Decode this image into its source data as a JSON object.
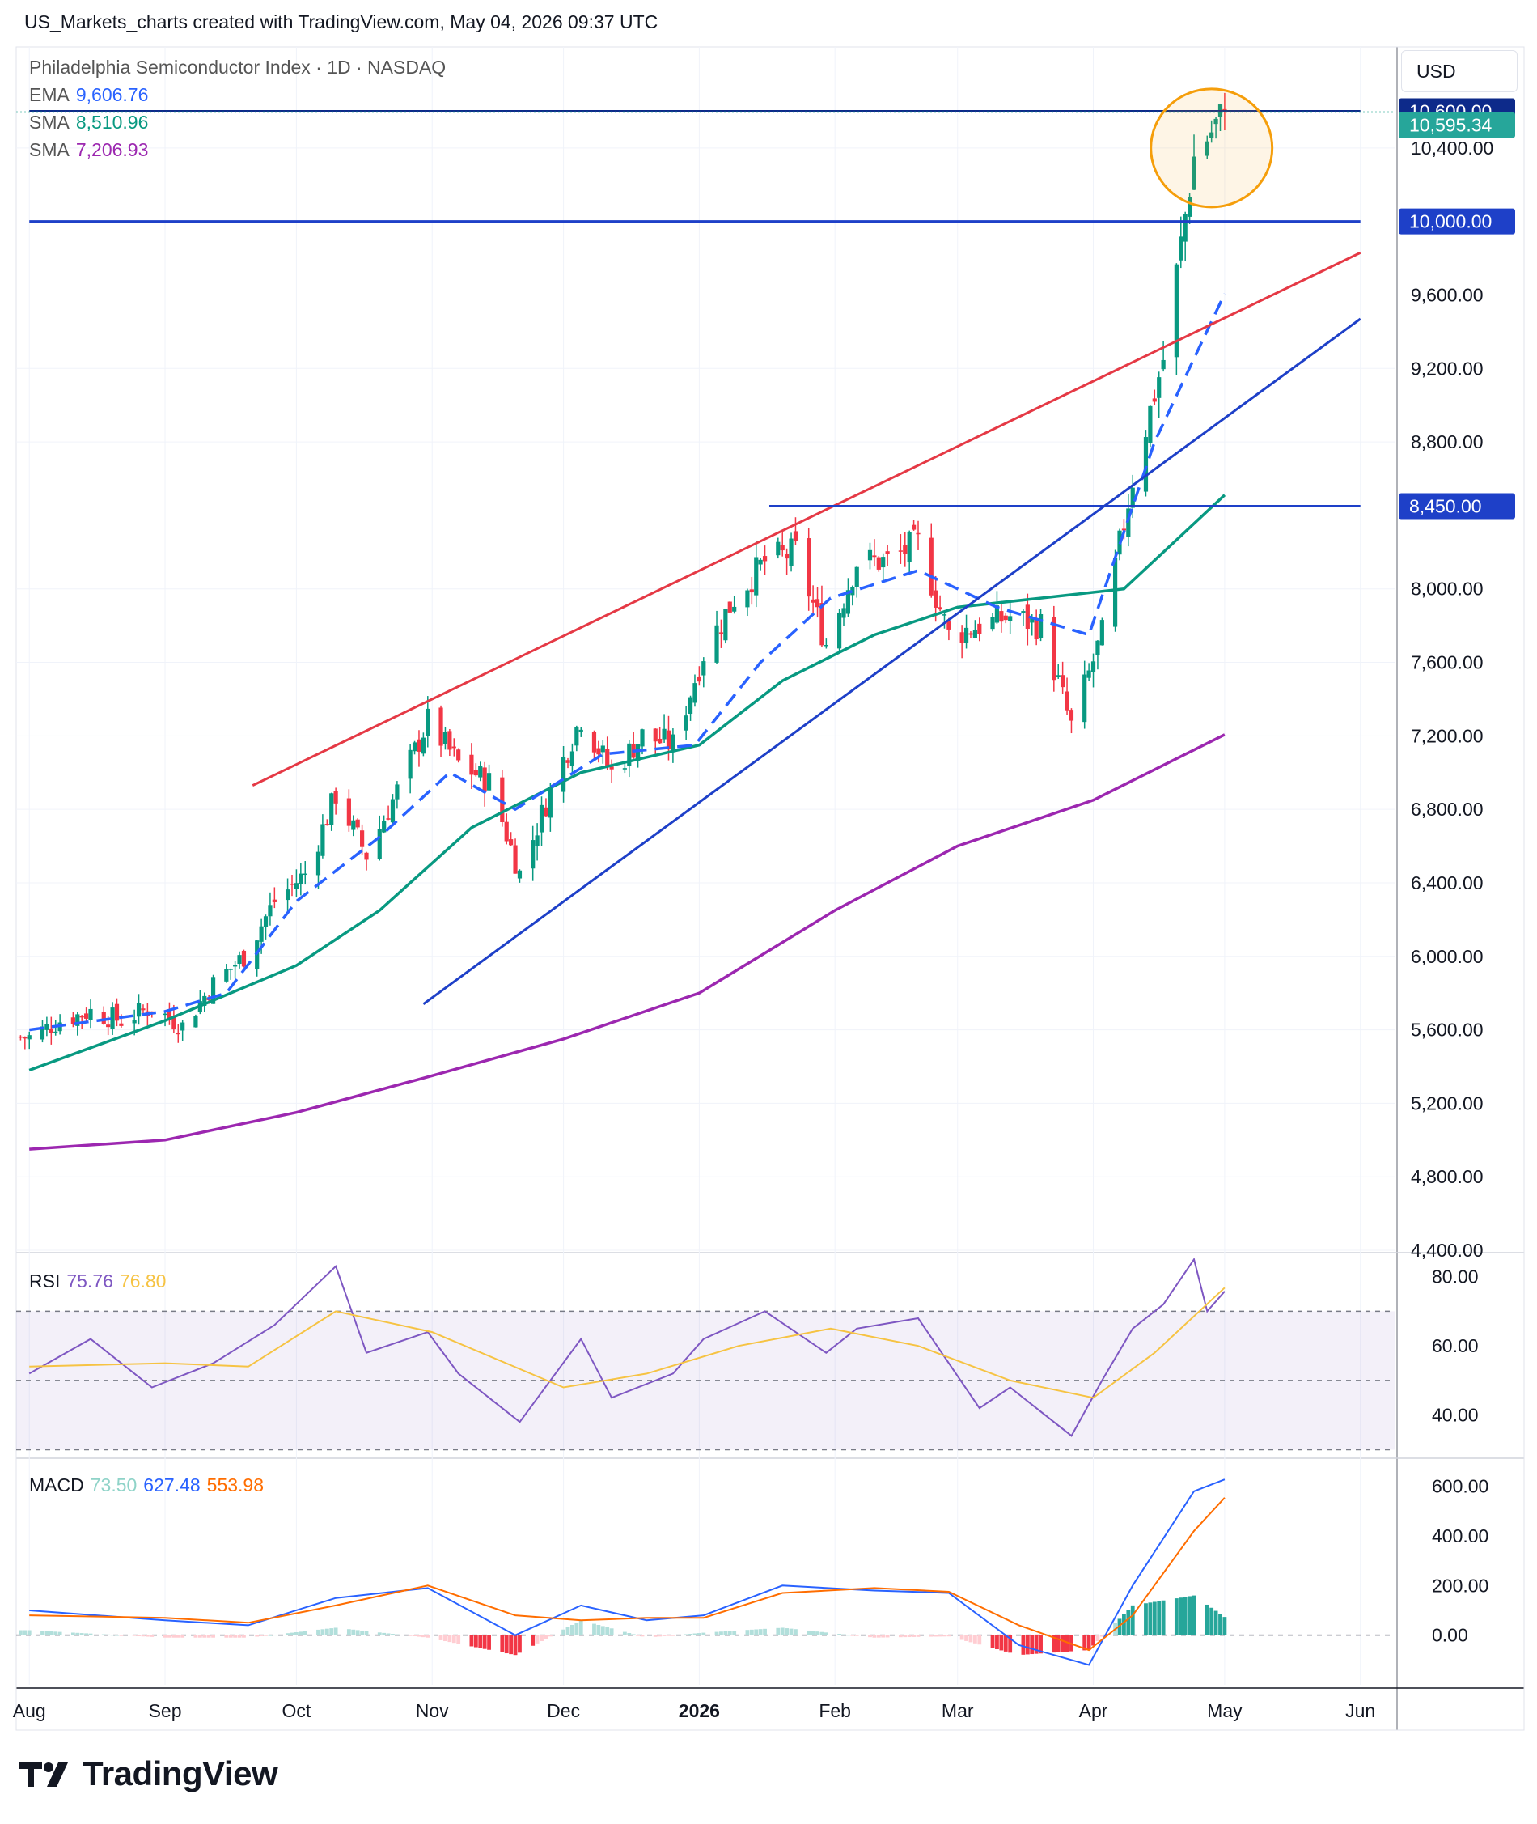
{
  "header": {
    "credit": "US_Markets_charts created with TradingView.com, May 04, 2026 09:37 UTC"
  },
  "legend": {
    "symbol": "Philadelphia Semiconductor Index · 1D · NASDAQ",
    "ema_label": "EMA",
    "ema_value": "9,606.76",
    "ema_color": "#2962ff",
    "sma1_label": "SMA",
    "sma1_value": "8,510.96",
    "sma1_color": "#089981",
    "sma2_label": "SMA",
    "sma2_value": "7,206.93",
    "sma2_color": "#9c27b0"
  },
  "currency": "USD",
  "rsi_legend": {
    "label": "RSI",
    "value": "75.76",
    "ma_value": "76.80"
  },
  "macd_legend": {
    "label": "MACD",
    "hist": "73.50",
    "macd": "627.48",
    "signal": "553.98"
  },
  "price_tags": [
    {
      "text": "10,600.00",
      "price": 10600,
      "bg": "#0d2a8a"
    },
    {
      "text": "10,595.34",
      "price": 10595.34,
      "bg": "#26a69a"
    },
    {
      "text": "10,000.00",
      "price": 10000,
      "bg": "#1e40c8"
    },
    {
      "text": "8,450.00",
      "price": 8450,
      "bg": "#1e40c8"
    }
  ],
  "branding": "TradingView",
  "chart_data": [
    {
      "type": "candlestick",
      "title": "Philadelphia Semiconductor Index · 1D · NASDAQ",
      "y_axis_ticks": [
        "10,400.00",
        "9,600.00",
        "9,200.00",
        "8,800.00",
        "8,000.00",
        "7,600.00",
        "7,200.00",
        "6,800.00",
        "6,400.00",
        "6,000.00",
        "5,600.00",
        "5,200.00",
        "4,800.00",
        "4,400.00"
      ],
      "ylim": [
        4400,
        10950
      ],
      "x_axis_ticks": [
        "Aug",
        "Sep",
        "Oct",
        "Nov",
        "Dec",
        "2026",
        "Feb",
        "Mar",
        "Apr",
        "May",
        "Jun"
      ],
      "close_path": [
        [
          "2025-08-01",
          5560
        ],
        [
          "2025-08-08",
          5650
        ],
        [
          "2025-08-15",
          5700
        ],
        [
          "2025-08-22",
          5650
        ],
        [
          "2025-08-29",
          5720
        ],
        [
          "2025-09-05",
          5620
        ],
        [
          "2025-09-12",
          5850
        ],
        [
          "2025-09-19",
          6000
        ],
        [
          "2025-09-26",
          6300
        ],
        [
          "2025-10-03",
          6450
        ],
        [
          "2025-10-10",
          6880
        ],
        [
          "2025-10-17",
          6550
        ],
        [
          "2025-10-24",
          6900
        ],
        [
          "2025-10-31",
          7280
        ],
        [
          "2025-11-07",
          7050
        ],
        [
          "2025-11-14",
          6950
        ],
        [
          "2025-11-21",
          6450
        ],
        [
          "2025-11-28",
          6900
        ],
        [
          "2025-12-05",
          7300
        ],
        [
          "2025-12-12",
          7000
        ],
        [
          "2025-12-19",
          7200
        ],
        [
          "2025-12-26",
          7150
        ],
        [
          "2026-01-02",
          7650
        ],
        [
          "2026-01-09",
          7950
        ],
        [
          "2026-01-16",
          8150
        ],
        [
          "2026-01-23",
          8200
        ],
        [
          "2026-01-30",
          7700
        ],
        [
          "2026-02-06",
          8150
        ],
        [
          "2026-02-13",
          8150
        ],
        [
          "2026-02-20",
          8250
        ],
        [
          "2026-02-27",
          7750
        ],
        [
          "2026-03-06",
          7800
        ],
        [
          "2026-03-13",
          7850
        ],
        [
          "2026-03-20",
          7800
        ],
        [
          "2026-03-27",
          7250
        ],
        [
          "2026-04-03",
          7750
        ],
        [
          "2026-04-10",
          8600
        ],
        [
          "2026-04-17",
          9250
        ],
        [
          "2026-04-24",
          10350
        ],
        [
          "2026-05-01",
          10595.34
        ]
      ],
      "ema": [
        [
          "2025-08-01",
          5600
        ],
        [
          "2025-09-01",
          5700
        ],
        [
          "2025-09-15",
          5800
        ],
        [
          "2025-10-01",
          6300
        ],
        [
          "2025-10-20",
          6650
        ],
        [
          "2025-11-05",
          7000
        ],
        [
          "2025-11-20",
          6800
        ],
        [
          "2025-12-10",
          7100
        ],
        [
          "2025-12-31",
          7150
        ],
        [
          "2026-01-15",
          7600
        ],
        [
          "2026-01-31",
          7950
        ],
        [
          "2026-02-20",
          8100
        ],
        [
          "2026-03-10",
          7900
        ],
        [
          "2026-03-31",
          7750
        ],
        [
          "2026-04-15",
          8800
        ],
        [
          "2026-05-01",
          9606.76
        ]
      ],
      "sma_50": [
        [
          "2025-08-01",
          5380
        ],
        [
          "2025-09-01",
          5650
        ],
        [
          "2025-10-01",
          5950
        ],
        [
          "2025-10-20",
          6250
        ],
        [
          "2025-11-10",
          6700
        ],
        [
          "2025-12-05",
          7000
        ],
        [
          "2026-01-01",
          7150
        ],
        [
          "2026-01-20",
          7500
        ],
        [
          "2026-02-10",
          7750
        ],
        [
          "2026-03-01",
          7900
        ],
        [
          "2026-03-20",
          7950
        ],
        [
          "2026-04-08",
          8000
        ],
        [
          "2026-05-01",
          8510.96
        ]
      ],
      "sma_200": [
        [
          "2025-08-01",
          4950
        ],
        [
          "2025-09-01",
          5000
        ],
        [
          "2025-10-01",
          5150
        ],
        [
          "2025-11-01",
          5350
        ],
        [
          "2025-12-01",
          5550
        ],
        [
          "2026-01-01",
          5800
        ],
        [
          "2026-02-01",
          6250
        ],
        [
          "2026-03-01",
          6600
        ],
        [
          "2026-04-01",
          6850
        ],
        [
          "2026-05-01",
          7206.93
        ]
      ],
      "trendlines": [
        {
          "color": "#e53945",
          "from": [
            "2025-09-21",
            6930
          ],
          "to": [
            "2026-06-01",
            9830
          ]
        },
        {
          "color": "#1e40c8",
          "from": [
            "2025-10-30",
            5740
          ],
          "to": [
            "2026-06-01",
            9470
          ]
        },
        {
          "color": "#1e40c8",
          "from": [
            "2026-01-17",
            8450
          ],
          "to": [
            "2026-06-01",
            8450
          ]
        },
        {
          "color": "#1e40c8",
          "from": [
            "2025-08-01",
            10000
          ],
          "to": [
            "2026-06-01",
            10000
          ]
        },
        {
          "color": "#0d2a8a",
          "from": [
            "2025-08-01",
            10600
          ],
          "to": [
            "2026-06-01",
            10600
          ]
        }
      ],
      "highlight": {
        "shape": "circle",
        "color": "#f59e0b",
        "center": [
          "2026-04-28",
          10400
        ]
      }
    },
    {
      "type": "line",
      "title": "RSI",
      "y_axis_ticks": [
        "80.00",
        "60.00",
        "40.00"
      ],
      "ylim": [
        28,
        86
      ],
      "bands": [
        30,
        50,
        70
      ],
      "series": [
        {
          "name": "RSI",
          "color": "#7e57c2",
          "values": [
            [
              "2025-08-01",
              52
            ],
            [
              "2025-08-15",
              62
            ],
            [
              "2025-08-29",
              48
            ],
            [
              "2025-09-12",
              55
            ],
            [
              "2025-09-26",
              66
            ],
            [
              "2025-10-10",
              83
            ],
            [
              "2025-10-17",
              58
            ],
            [
              "2025-10-31",
              64
            ],
            [
              "2025-11-07",
              52
            ],
            [
              "2025-11-21",
              38
            ],
            [
              "2025-12-05",
              62
            ],
            [
              "2025-12-12",
              45
            ],
            [
              "2025-12-26",
              52
            ],
            [
              "2026-01-02",
              62
            ],
            [
              "2026-01-16",
              70
            ],
            [
              "2026-01-30",
              58
            ],
            [
              "2026-02-06",
              65
            ],
            [
              "2026-02-20",
              68
            ],
            [
              "2026-03-06",
              42
            ],
            [
              "2026-03-13",
              48
            ],
            [
              "2026-03-27",
              34
            ],
            [
              "2026-04-03",
              50
            ],
            [
              "2026-04-10",
              65
            ],
            [
              "2026-04-17",
              72
            ],
            [
              "2026-04-24",
              85
            ],
            [
              "2026-04-27",
              70
            ],
            [
              "2026-05-01",
              75.76
            ]
          ]
        },
        {
          "name": "RSI MA",
          "color": "#f6c343",
          "values": [
            [
              "2025-08-01",
              54
            ],
            [
              "2025-09-01",
              55
            ],
            [
              "2025-09-20",
              54
            ],
            [
              "2025-10-10",
              70
            ],
            [
              "2025-11-01",
              64
            ],
            [
              "2025-12-01",
              48
            ],
            [
              "2025-12-20",
              52
            ],
            [
              "2026-01-10",
              60
            ],
            [
              "2026-01-31",
              65
            ],
            [
              "2026-02-20",
              60
            ],
            [
              "2026-03-13",
              50
            ],
            [
              "2026-04-01",
              45
            ],
            [
              "2026-04-15",
              58
            ],
            [
              "2026-05-01",
              76.8
            ]
          ]
        }
      ]
    },
    {
      "type": "line",
      "title": "MACD",
      "y_axis_ticks": [
        "600.00",
        "400.00",
        "200.00",
        "0.00"
      ],
      "ylim": [
        -200,
        700
      ],
      "series": [
        {
          "name": "MACD",
          "color": "#2962ff",
          "values": [
            [
              "2025-08-01",
              100
            ],
            [
              "2025-09-01",
              60
            ],
            [
              "2025-09-20",
              40
            ],
            [
              "2025-10-10",
              150
            ],
            [
              "2025-10-31",
              190
            ],
            [
              "2025-11-20",
              0
            ],
            [
              "2025-12-05",
              120
            ],
            [
              "2025-12-20",
              60
            ],
            [
              "2026-01-02",
              80
            ],
            [
              "2026-01-20",
              200
            ],
            [
              "2026-02-10",
              180
            ],
            [
              "2026-02-27",
              170
            ],
            [
              "2026-03-15",
              -40
            ],
            [
              "2026-03-31",
              -120
            ],
            [
              "2026-04-10",
              200
            ],
            [
              "2026-04-24",
              580
            ],
            [
              "2026-05-01",
              627.48
            ]
          ]
        },
        {
          "name": "Signal",
          "color": "#ff6d00",
          "values": [
            [
              "2025-08-01",
              80
            ],
            [
              "2025-09-01",
              70
            ],
            [
              "2025-09-20",
              50
            ],
            [
              "2025-10-10",
              120
            ],
            [
              "2025-10-31",
              200
            ],
            [
              "2025-11-20",
              80
            ],
            [
              "2025-12-05",
              60
            ],
            [
              "2025-12-20",
              70
            ],
            [
              "2026-01-02",
              70
            ],
            [
              "2026-01-20",
              170
            ],
            [
              "2026-02-10",
              190
            ],
            [
              "2026-02-27",
              175
            ],
            [
              "2026-03-15",
              40
            ],
            [
              "2026-03-31",
              -60
            ],
            [
              "2026-04-10",
              80
            ],
            [
              "2026-04-24",
              420
            ],
            [
              "2026-05-01",
              553.98
            ]
          ]
        }
      ]
    }
  ]
}
